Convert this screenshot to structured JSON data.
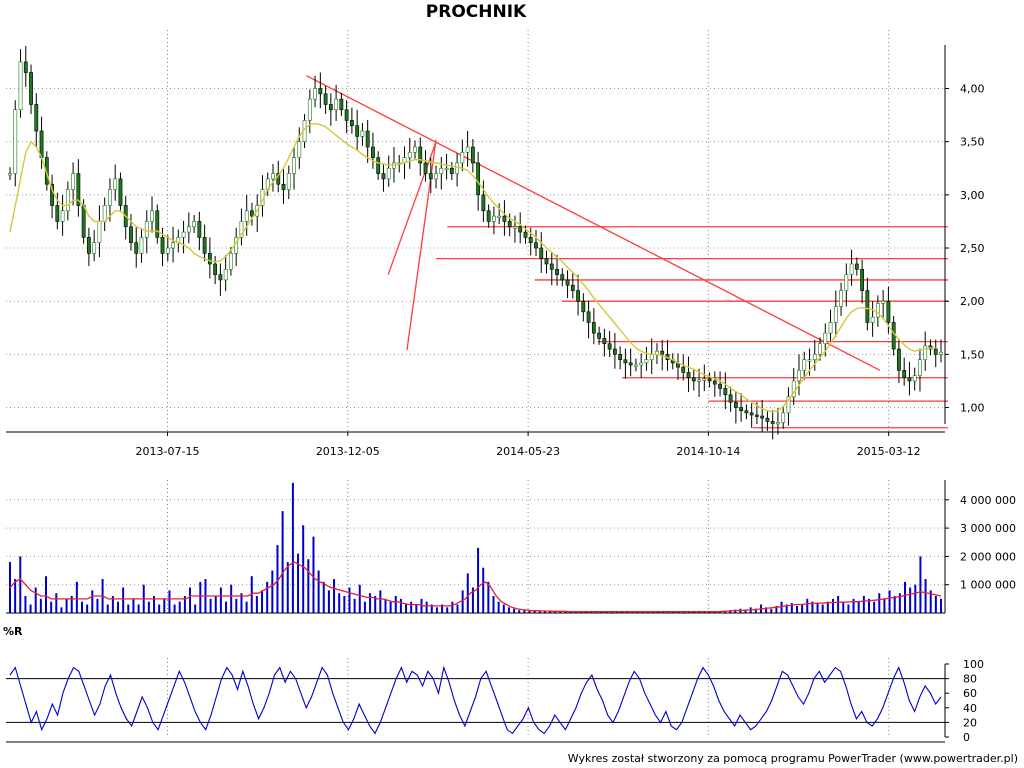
{
  "header": {
    "title": "PROCHNIK"
  },
  "footer": {
    "text": "Wykres został stworzony za pomocą programu PowerTrader (www.powertrader.pl)"
  },
  "chart_data": [
    {
      "type": "candlestick",
      "title": "PROCHNIK",
      "x_tick_labels": [
        "2013-07-15",
        "2013-12-05",
        "2014-05-23",
        "2014-10-14",
        "2015-03-12"
      ],
      "y_tick_labels": [
        "1,00",
        "1,50",
        "2,00",
        "2,50",
        "3,00",
        "3,50",
        "4,00"
      ],
      "y_ticks": [
        1.0,
        1.5,
        2.0,
        2.5,
        3.0,
        3.5,
        4.0
      ],
      "ylim": [
        0.77,
        4.55
      ],
      "grid": true,
      "series": [
        {
          "values": [
            3.2,
            3.8,
            4.25,
            4.15,
            3.85,
            3.6,
            3.35,
            3.1,
            2.9,
            2.75,
            2.85,
            3.05,
            3.2,
            2.9,
            2.6,
            2.45,
            2.55,
            2.75,
            2.9,
            3.05,
            3.15,
            2.9,
            2.7,
            2.55,
            2.45,
            2.6,
            2.75,
            2.85,
            2.6,
            2.45,
            2.5,
            2.55,
            2.6,
            2.65,
            2.7,
            2.75,
            2.6,
            2.45,
            2.35,
            2.25,
            2.2,
            2.3,
            2.45,
            2.6,
            2.75,
            2.85,
            2.8,
            2.9,
            3.05,
            3.15,
            3.2,
            3.1,
            3.05,
            3.2,
            3.35,
            3.5,
            3.7,
            3.9,
            4.0,
            3.95,
            3.85,
            3.8,
            3.9,
            3.8,
            3.7,
            3.65,
            3.55,
            3.6,
            3.45,
            3.35,
            3.2,
            3.15,
            3.25,
            3.3,
            3.3,
            3.35,
            3.4,
            3.45,
            3.3,
            3.2,
            3.15,
            3.2,
            3.25,
            3.25,
            3.2,
            3.3,
            3.4,
            3.45,
            3.3,
            3.0,
            2.85,
            2.75,
            2.8,
            2.8,
            2.75,
            2.7,
            2.7,
            2.65,
            2.6,
            2.55,
            2.5,
            2.4,
            2.35,
            2.3,
            2.25,
            2.2,
            2.15,
            2.1,
            2.0,
            1.9,
            1.8,
            1.7,
            1.65,
            1.6,
            1.55,
            1.5,
            1.45,
            1.42,
            1.4,
            1.4,
            1.42,
            1.45,
            1.5,
            1.53,
            1.5,
            1.45,
            1.42,
            1.38,
            1.33,
            1.28,
            1.25,
            1.26,
            1.27,
            1.25,
            1.22,
            1.18,
            1.12,
            1.05,
            1.0,
            0.97,
            0.95,
            0.93,
            0.92,
            0.9,
            0.87,
            0.85,
            0.86,
            0.95,
            1.1,
            1.25,
            1.35,
            1.45,
            1.45,
            1.5,
            1.6,
            1.7,
            1.8,
            1.95,
            2.1,
            2.25,
            2.35,
            2.3,
            2.1,
            1.8,
            1.85,
            1.98,
            2.0,
            1.8,
            1.55,
            1.35,
            1.28,
            1.25,
            1.3,
            1.45,
            1.58,
            1.55,
            1.5,
            1.52
          ]
        },
        {
          "name": "",
          "values": [
            2.65,
            2.9,
            3.15,
            3.4,
            3.5,
            3.45,
            3.35,
            3.2,
            3.05,
            2.95,
            2.9,
            2.9,
            2.95,
            2.95,
            2.9,
            2.8,
            2.75,
            2.75,
            2.75,
            2.8,
            2.85,
            2.85,
            2.8,
            2.75,
            2.7,
            2.68,
            2.66,
            2.66,
            2.66,
            2.63,
            2.6,
            2.57,
            2.55,
            2.53,
            2.5,
            2.45,
            2.42,
            2.4,
            2.38,
            2.37,
            2.38,
            2.42,
            2.48,
            2.55,
            2.63,
            2.7,
            2.78,
            2.85,
            2.95,
            3.05,
            3.12,
            3.18,
            3.25,
            3.35,
            3.45,
            3.55,
            3.62,
            3.66,
            3.67,
            3.66,
            3.64,
            3.6,
            3.56,
            3.52,
            3.48,
            3.45,
            3.42,
            3.38,
            3.35,
            3.32,
            3.3,
            3.29,
            3.28,
            3.28,
            3.29,
            3.3,
            3.32,
            3.33,
            3.33,
            3.32,
            3.31,
            3.3,
            3.29,
            3.28,
            3.27,
            3.26,
            3.25,
            3.23,
            3.18,
            3.12,
            3.05,
            2.98,
            2.92,
            2.87,
            2.82,
            2.78,
            2.75,
            2.72,
            2.68,
            2.64,
            2.6,
            2.55,
            2.5,
            2.46,
            2.41,
            2.37,
            2.32,
            2.27,
            2.22,
            2.16,
            2.1,
            2.03,
            1.97,
            1.91,
            1.85,
            1.79,
            1.73,
            1.67,
            1.61,
            1.56,
            1.53,
            1.51,
            1.5,
            1.5,
            1.49,
            1.47,
            1.45,
            1.42,
            1.4,
            1.38,
            1.36,
            1.33,
            1.31,
            1.29,
            1.27,
            1.25,
            1.22,
            1.18,
            1.15,
            1.12,
            1.08,
            1.05,
            1.02,
            0.99,
            0.97,
            0.96,
            0.97,
            1.01,
            1.07,
            1.14,
            1.21,
            1.28,
            1.35,
            1.41,
            1.47,
            1.53,
            1.6,
            1.68,
            1.76,
            1.84,
            1.9,
            1.93,
            1.94,
            1.93,
            1.92,
            1.89,
            1.84,
            1.77,
            1.7,
            1.64,
            1.59,
            1.55,
            1.53,
            1.54,
            1.55,
            1.56,
            1.56
          ]
        }
      ],
      "trendlines": [
        {
          "from": [
            0.0,
            4.12
          ],
          "to": [
            0.952,
            1.35
          ]
        },
        {
          "from": [
            0.243,
            3.5
          ],
          "to": [
            0.407,
            2.25
          ]
        },
        {
          "from": [
            0.243,
            3.52
          ],
          "to": [
            0.427,
            1.54
          ]
        }
      ],
      "support_resistance_levels": [
        2.7,
        2.4,
        2.2,
        2.0,
        1.62,
        1.28,
        1.06,
        0.81
      ]
    },
    {
      "type": "bar",
      "title": "",
      "y_tick_labels": [
        "1 000 000",
        "2 000 000",
        "3 000 000",
        "4 000 000"
      ],
      "y_ticks": [
        1000000,
        2000000,
        3000000,
        4000000
      ],
      "ylim": [
        0,
        4700000
      ],
      "grid": true,
      "series": [
        {
          "values": [
            1.8,
            1.2,
            2.0,
            0.6,
            0.3,
            0.9,
            0.5,
            1.3,
            0.4,
            0.7,
            0.2,
            0.5,
            0.6,
            1.1,
            0.4,
            0.3,
            0.8,
            0.5,
            1.2,
            0.3,
            0.6,
            0.4,
            0.9,
            0.3,
            0.5,
            0.3,
            1.0,
            0.4,
            0.6,
            0.3,
            0.5,
            0.8,
            0.3,
            0.4,
            0.6,
            0.9,
            0.3,
            1.1,
            1.2,
            0.5,
            0.6,
            0.9,
            0.4,
            1.0,
            0.5,
            0.7,
            0.4,
            1.3,
            0.6,
            0.8,
            1.1,
            1.5,
            2.4,
            3.6,
            1.8,
            4.6,
            2.1,
            3.1,
            1.9,
            2.7,
            1.5,
            1.1,
            0.8,
            1.2,
            0.7,
            0.6,
            0.9,
            0.5,
            1.0,
            0.4,
            0.7,
            0.6,
            0.8,
            0.5,
            0.4,
            0.6,
            0.5,
            0.3,
            0.4,
            0.3,
            0.5,
            0.4,
            0.3,
            0.2,
            0.3,
            0.2,
            0.4,
            0.3,
            0.8,
            1.4,
            0.9,
            2.3,
            1.6,
            1.1,
            0.6,
            0.4,
            0.3,
            0.2,
            0.15,
            0.1,
            0.1,
            0.08,
            0.1,
            0.07,
            0.08,
            0.06,
            0.07,
            0.06,
            0.05,
            0.06,
            0.05,
            0.05,
            0.06,
            0.05,
            0.04,
            0.05,
            0.05,
            0.04,
            0.05,
            0.05,
            0.04,
            0.05,
            0.06,
            0.05,
            0.04,
            0.05,
            0.04,
            0.05,
            0.04,
            0.05,
            0.05,
            0.06,
            0.05,
            0.05,
            0.04,
            0.05,
            0.06,
            0.05,
            0.07,
            0.08,
            0.1,
            0.12,
            0.15,
            0.1,
            0.2,
            0.15,
            0.3,
            0.2,
            0.15,
            0.25,
            0.4,
            0.3,
            0.35,
            0.25,
            0.3,
            0.5,
            0.4,
            0.35,
            0.3,
            0.4,
            0.5,
            0.6,
            0.4,
            0.3,
            0.5,
            0.4,
            0.6,
            0.5,
            0.4,
            0.7,
            0.5,
            0.8,
            0.6,
            0.7,
            1.1,
            0.9,
            1.0,
            2.0,
            1.2,
            0.8,
            0.6,
            0.5
          ]
        },
        {
          "name": "",
          "values": [
            0.9,
            1.1,
            1.2,
            1.0,
            0.8,
            0.7,
            0.6,
            0.6,
            0.5,
            0.5,
            0.5,
            0.5,
            0.5,
            0.5,
            0.5,
            0.5,
            0.6,
            0.6,
            0.6,
            0.5,
            0.5,
            0.5,
            0.5,
            0.5,
            0.5,
            0.5,
            0.5,
            0.5,
            0.5,
            0.5,
            0.5,
            0.5,
            0.5,
            0.5,
            0.5,
            0.6,
            0.6,
            0.6,
            0.6,
            0.6,
            0.6,
            0.6,
            0.6,
            0.6,
            0.6,
            0.6,
            0.6,
            0.7,
            0.7,
            0.8,
            0.9,
            1.0,
            1.2,
            1.5,
            1.7,
            1.8,
            1.7,
            1.6,
            1.4,
            1.2,
            1.1,
            1.0,
            0.9,
            0.85,
            0.8,
            0.75,
            0.7,
            0.65,
            0.6,
            0.55,
            0.55,
            0.5,
            0.5,
            0.45,
            0.4,
            0.4,
            0.35,
            0.3,
            0.3,
            0.3,
            0.25,
            0.25,
            0.25,
            0.25,
            0.25,
            0.25,
            0.3,
            0.4,
            0.5,
            0.7,
            0.8,
            1.0,
            1.1,
            0.9,
            0.6,
            0.4,
            0.3,
            0.2,
            0.15,
            0.12,
            0.1,
            0.08,
            0.08,
            0.07,
            0.07,
            0.06,
            0.06,
            0.06,
            0.05,
            0.05,
            0.05,
            0.05,
            0.05,
            0.05,
            0.05,
            0.05,
            0.05,
            0.05,
            0.05,
            0.05,
            0.05,
            0.05,
            0.05,
            0.05,
            0.05,
            0.05,
            0.05,
            0.05,
            0.05,
            0.05,
            0.05,
            0.05,
            0.05,
            0.05,
            0.05,
            0.05,
            0.05,
            0.05,
            0.06,
            0.07,
            0.08,
            0.09,
            0.1,
            0.11,
            0.12,
            0.14,
            0.16,
            0.18,
            0.2,
            0.22,
            0.25,
            0.27,
            0.3,
            0.3,
            0.32,
            0.34,
            0.35,
            0.35,
            0.36,
            0.37,
            0.38,
            0.38,
            0.39,
            0.4,
            0.4,
            0.42,
            0.43,
            0.45,
            0.47,
            0.5,
            0.52,
            0.55,
            0.58,
            0.62,
            0.66,
            0.7,
            0.75,
            0.72,
            0.68,
            0.64,
            0.6
          ]
        }
      ],
      "units": "millions"
    },
    {
      "type": "line",
      "title": "%R",
      "y_tick_labels": [
        "0",
        "20",
        "40",
        "60",
        "80",
        "100"
      ],
      "y_ticks": [
        0,
        20,
        40,
        60,
        80,
        100
      ],
      "ylim": [
        0,
        100
      ],
      "reference_lines": [
        20,
        80
      ],
      "series": [
        {
          "values": [
            85,
            95,
            70,
            45,
            20,
            35,
            10,
            25,
            45,
            30,
            60,
            80,
            95,
            90,
            70,
            50,
            30,
            45,
            70,
            85,
            60,
            40,
            25,
            15,
            35,
            55,
            40,
            20,
            10,
            30,
            50,
            70,
            90,
            75,
            55,
            35,
            20,
            10,
            30,
            55,
            80,
            95,
            85,
            65,
            90,
            70,
            45,
            25,
            40,
            60,
            85,
            95,
            75,
            90,
            80,
            60,
            40,
            55,
            75,
            95,
            85,
            60,
            40,
            20,
            10,
            25,
            45,
            30,
            15,
            5,
            20,
            40,
            60,
            80,
            95,
            75,
            90,
            85,
            70,
            90,
            80,
            60,
            95,
            75,
            50,
            30,
            15,
            35,
            55,
            80,
            90,
            70,
            50,
            30,
            10,
            5,
            15,
            25,
            40,
            20,
            10,
            5,
            15,
            30,
            20,
            10,
            25,
            40,
            60,
            75,
            85,
            65,
            50,
            30,
            20,
            35,
            55,
            75,
            90,
            80,
            60,
            45,
            30,
            20,
            35,
            15,
            10,
            20,
            40,
            60,
            80,
            95,
            85,
            70,
            50,
            35,
            25,
            15,
            30,
            20,
            10,
            15,
            25,
            35,
            50,
            70,
            90,
            85,
            70,
            55,
            45,
            60,
            80,
            90,
            75,
            85,
            95,
            90,
            70,
            45,
            25,
            35,
            20,
            15,
            25,
            40,
            60,
            80,
            95,
            75,
            50,
            35,
            55,
            70,
            60,
            45,
            55
          ]
        }
      ]
    }
  ]
}
